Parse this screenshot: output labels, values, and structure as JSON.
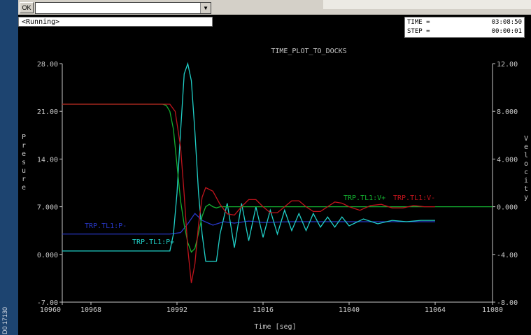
{
  "toolbar": {
    "ok_label": "OK",
    "command_value": "",
    "dropdown_glyph": "▼"
  },
  "status": {
    "text": "<Running>"
  },
  "clock": {
    "time_label": "TIME =",
    "time_value": "03:08:50",
    "step_label": "STEP =",
    "step_value": "00:00:01"
  },
  "side_label": "D0 17130",
  "colors": {
    "background": "#000000",
    "axes": "#c8c8c8",
    "text": "#c8c8c8",
    "red": "#c0141c",
    "green": "#14b030",
    "cyan": "#20d0c8",
    "blue": "#2838c8"
  },
  "chart_data": {
    "type": "line",
    "title": "TIME_PLOT_TO_DOCKS",
    "xlabel": "Time [seg]",
    "ylabel_left": "Presure",
    "ylabel_right": "Velocity",
    "xlim": [
      10960,
      11080
    ],
    "ylim_left": [
      -7,
      28
    ],
    "ylim_right": [
      -8,
      12
    ],
    "x_ticks": [
      "10960",
      "10968",
      "10992",
      "11016",
      "11040",
      "11064",
      "11080"
    ],
    "y_ticks_left": [
      "28.00",
      "21.00",
      "14.00",
      "7.000",
      "0.000",
      "-7.00"
    ],
    "y_ticks_right": [
      "12.00",
      "8.000",
      "4.000",
      "0.000",
      "-4.00",
      "-8.00"
    ],
    "series": [
      {
        "name": "TRP.TL1:V-",
        "color": "red",
        "axis": "right",
        "x": [
          10960,
          10990,
          10991.5,
          10993,
          10994,
          10995,
          10996,
          10997,
          10998,
          10999,
          11000,
          11002,
          11004,
          11006,
          11008,
          11010,
          11012,
          11014,
          11016,
          11018,
          11020,
          11022,
          11024,
          11026,
          11028,
          11030,
          11032,
          11034,
          11036,
          11038,
          11040,
          11043,
          11046,
          11049,
          11052,
          11055,
          11058,
          11061,
          11064
        ],
        "y": [
          8.6,
          8.6,
          8.0,
          5.0,
          1.0,
          -3.5,
          -6.4,
          -4.8,
          -1.5,
          0.8,
          1.6,
          1.3,
          0.2,
          -0.6,
          -0.7,
          0.0,
          0.6,
          0.6,
          0.0,
          -0.5,
          -0.5,
          0.0,
          0.5,
          0.5,
          0.0,
          -0.4,
          -0.4,
          0.0,
          0.4,
          0.3,
          0.0,
          -0.3,
          0.1,
          0.2,
          -0.1,
          -0.1,
          0.1,
          0.0,
          0.0
        ]
      },
      {
        "name": "TRP.TL1:V+",
        "color": "green",
        "axis": "right",
        "x": [
          10960,
          10988,
          10989,
          10990,
          10991,
          10992,
          10993,
          10994,
          10995,
          10996,
          10997,
          10998,
          10999,
          11000,
          11001,
          11002,
          11003,
          11004,
          11010,
          11040,
          11064,
          11080
        ],
        "y": [
          8.6,
          8.6,
          8.5,
          8.0,
          6.5,
          3.5,
          0.5,
          -1.5,
          -3.0,
          -3.8,
          -3.5,
          -2.2,
          -0.8,
          0.0,
          0.2,
          0.0,
          -0.1,
          0.0,
          0.0,
          0.0,
          0.0,
          0.0
        ]
      },
      {
        "name": "TRP.TL1:P+",
        "color": "cyan",
        "axis": "left",
        "x": [
          10960,
          10990,
          10991,
          10992,
          10993,
          10994,
          10995,
          10996,
          10997,
          10998,
          10999,
          11000,
          11001,
          11002,
          11003,
          11004,
          11006,
          11008,
          11010,
          11012,
          11014,
          11016,
          11018,
          11020,
          11022,
          11024,
          11026,
          11028,
          11030,
          11032,
          11034,
          11036,
          11038,
          11040,
          11044,
          11048,
          11052,
          11056,
          11060,
          11064
        ],
        "y": [
          0.5,
          0.5,
          3.0,
          9.0,
          18.0,
          26.5,
          28.0,
          25.5,
          18.0,
          9.0,
          3.0,
          -1.0,
          -1.0,
          -1.0,
          -1.0,
          3.0,
          7.5,
          1.0,
          7.5,
          2.0,
          7.0,
          2.5,
          6.5,
          3.0,
          6.5,
          3.5,
          6.0,
          3.5,
          6.0,
          4.0,
          5.5,
          4.0,
          5.5,
          4.2,
          5.2,
          4.5,
          5.0,
          4.8,
          5.0,
          5.0
        ]
      },
      {
        "name": "TRP.TL1:P-",
        "color": "blue",
        "axis": "left",
        "x": [
          10960,
          10990,
          10993,
          10995,
          10997,
          10999,
          11002,
          11005,
          11008,
          11012,
          11016,
          11024,
          11040,
          11064
        ],
        "y": [
          3.0,
          3.0,
          3.2,
          4.5,
          6.0,
          5.0,
          4.3,
          4.8,
          4.6,
          4.9,
          4.7,
          4.8,
          4.8,
          4.8
        ]
      }
    ],
    "grid": false,
    "legend": "inline labels"
  }
}
